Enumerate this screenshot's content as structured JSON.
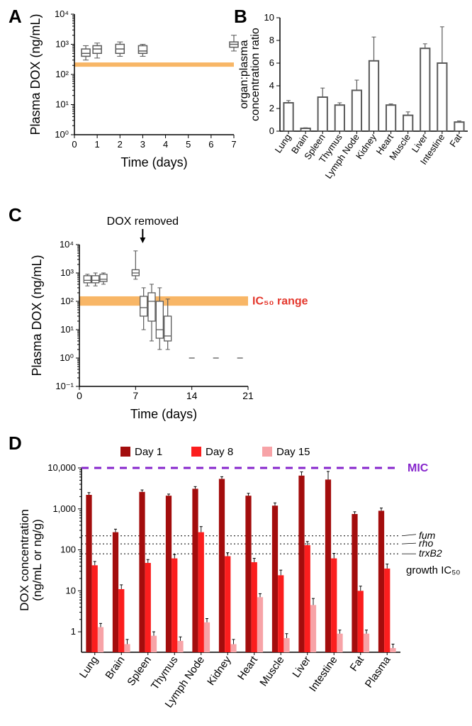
{
  "panelA": {
    "type": "boxplot",
    "title_letter": "A",
    "y_label": "Plasma DOX (ng/mL)",
    "x_label": "Time (days)",
    "y_scale": "log",
    "y_ticks": [
      1,
      10,
      100,
      1000,
      10000
    ],
    "y_tick_labels": [
      "10⁰",
      "10¹",
      "10²",
      "10³",
      "10⁴"
    ],
    "x_ticks": [
      0,
      1,
      2,
      3,
      4,
      5,
      6,
      7
    ],
    "ic50_band": {
      "min": 180,
      "max": 250,
      "color": "#f8b666"
    },
    "boxes": [
      {
        "x": 0.5,
        "low": 300,
        "q1": 400,
        "med": 500,
        "q3": 700,
        "high": 900
      },
      {
        "x": 1,
        "low": 350,
        "q1": 500,
        "med": 700,
        "q3": 900,
        "high": 1100
      },
      {
        "x": 2,
        "low": 400,
        "q1": 500,
        "med": 700,
        "q3": 1000,
        "high": 1200
      },
      {
        "x": 3,
        "low": 400,
        "q1": 500,
        "med": 600,
        "q3": 900,
        "high": 1000
      },
      {
        "x": 7,
        "low": 600,
        "q1": 800,
        "med": 1000,
        "q3": 1200,
        "high": 2000
      }
    ],
    "box_stroke": "#5a5a5a",
    "background": "#ffffff"
  },
  "panelB": {
    "type": "bar",
    "title_letter": "B",
    "y_label": "organ:plasma\nconcentration ratio",
    "x_categories": [
      "Lung",
      "Brain",
      "Spleen",
      "Thymus",
      "Lymph Node",
      "Kidney",
      "Heart",
      "Muscle",
      "Liver",
      "Intestine",
      "Fat"
    ],
    "values": [
      2.5,
      0.25,
      3.0,
      2.3,
      3.6,
      6.2,
      2.3,
      1.4,
      7.3,
      6.0,
      0.8
    ],
    "errors": [
      0.2,
      0.05,
      0.8,
      0.2,
      0.9,
      2.1,
      0.1,
      0.3,
      0.4,
      3.2,
      0.1
    ],
    "y_ticks": [
      0,
      2,
      4,
      6,
      8,
      10
    ],
    "bar_fill": "#ffffff",
    "bar_stroke": "#5a5a5a",
    "bar_stroke_width": 2,
    "bar_width": 0.55
  },
  "panelC": {
    "type": "boxplot",
    "title_letter": "C",
    "y_label": "Plasma DOX (ng/mL)",
    "x_label": "Time (days)",
    "y_scale": "log",
    "y_ticks": [
      0.1,
      1,
      10,
      100,
      1000,
      10000
    ],
    "y_tick_labels": [
      "10⁻¹",
      "10⁰",
      "10¹",
      "10²",
      "10³",
      "10⁴"
    ],
    "x_ticks": [
      0,
      7,
      14,
      21
    ],
    "ic50_band": {
      "min": 70,
      "max": 150,
      "color": "#f8b666"
    },
    "ic50_text": "IC₅₀ range",
    "ic50_text_color": "#e4382d",
    "dox_removed_text": "DOX removed",
    "dox_removed_day": 7,
    "boxes": [
      {
        "x": 1,
        "low": 350,
        "q1": 450,
        "med": 550,
        "q3": 800,
        "high": 900
      },
      {
        "x": 2,
        "low": 350,
        "q1": 450,
        "med": 550,
        "q3": 800,
        "high": 1000
      },
      {
        "x": 3,
        "low": 400,
        "q1": 500,
        "med": 600,
        "q3": 900,
        "high": 1000
      },
      {
        "x": 7,
        "low": 600,
        "q1": 800,
        "med": 1000,
        "q3": 1300,
        "high": 6000
      },
      {
        "x": 8,
        "low": 10,
        "q1": 30,
        "med": 60,
        "q3": 150,
        "high": 300
      },
      {
        "x": 9,
        "low": 4,
        "q1": 20,
        "med": 100,
        "q3": 200,
        "high": 400
      },
      {
        "x": 10,
        "low": 2,
        "q1": 5,
        "med": 10,
        "q3": 100,
        "high": 300
      },
      {
        "x": 11,
        "low": 2,
        "q1": 4,
        "med": 6,
        "q3": 30,
        "high": 120
      }
    ],
    "low_points": [
      {
        "x": 14,
        "y": 1
      },
      {
        "x": 17,
        "y": 1
      },
      {
        "x": 20,
        "y": 1
      }
    ]
  },
  "panelD": {
    "type": "grouped-bar",
    "title_letter": "D",
    "y_label": "DOX concentration\n(ng/mL or ng/g)",
    "x_categories": [
      "Lung",
      "Brain",
      "Spleen",
      "Thymus",
      "Lymph Node",
      "Kidney",
      "Heart",
      "Muscle",
      "Liver",
      "Intestine",
      "Fat",
      "Plasma"
    ],
    "legend": [
      {
        "label": "Day 1",
        "color": "#a30d0d"
      },
      {
        "label": "Day 8",
        "color": "#fb1e1e"
      },
      {
        "label": "Day 15",
        "color": "#f7a3a7"
      }
    ],
    "y_scale": "log",
    "y_ticks": [
      1,
      10,
      100,
      1000,
      10000
    ],
    "y_tick_labels": [
      "1",
      "10",
      "100",
      "1,000",
      "10,000"
    ],
    "mic_line": {
      "y": 10000,
      "color": "#8625cc",
      "label": "MIC"
    },
    "ic50_lines": [
      {
        "y": 220,
        "label": "fum"
      },
      {
        "y": 140,
        "label": "rho"
      },
      {
        "y": 80,
        "label": "trxB2"
      }
    ],
    "ic50_caption": "growth IC₅₀",
    "series": {
      "Day 1": [
        2200,
        270,
        2600,
        2100,
        3100,
        5400,
        2100,
        1200,
        6500,
        5200,
        750,
        900
      ],
      "Day 8": [
        42,
        11,
        48,
        62,
        270,
        70,
        50,
        24,
        130,
        62,
        10,
        35
      ],
      "Day 15": [
        1.3,
        0.5,
        0.8,
        0.6,
        1.7,
        0.5,
        7.0,
        0.7,
        4.5,
        0.9,
        0.9,
        0.4
      ]
    },
    "errors": {
      "Day 1": [
        300,
        50,
        300,
        200,
        400,
        700,
        300,
        200,
        1500,
        3000,
        100,
        150
      ],
      "Day 8": [
        10,
        3,
        10,
        15,
        100,
        15,
        12,
        8,
        30,
        20,
        3,
        10
      ],
      "Day 15": [
        0.3,
        0.15,
        0.2,
        0.15,
        0.4,
        0.15,
        1.5,
        0.2,
        2,
        0.2,
        0.2,
        0.1
      ]
    },
    "bar_width": 0.22
  }
}
